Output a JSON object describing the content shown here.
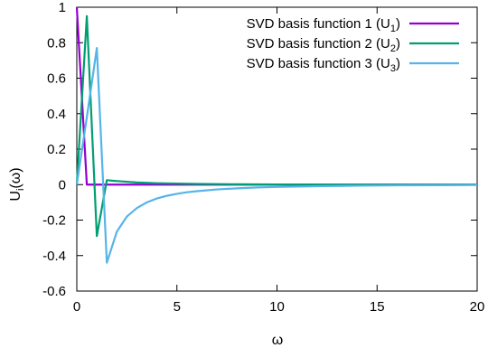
{
  "chart_data": {
    "type": "line",
    "title": "",
    "xlabel": "ω",
    "ylabel": {
      "base": "U",
      "sub": "i",
      "rest": "(ω)"
    },
    "xlim": [
      0,
      20
    ],
    "ylim": [
      -0.6,
      1
    ],
    "xticks": [
      0,
      5,
      10,
      15,
      20
    ],
    "yticks": [
      -0.6,
      -0.4,
      -0.2,
      0,
      0.2,
      0.4,
      0.6,
      0.8,
      1
    ],
    "xtick_labels": [
      "0",
      "5",
      "10",
      "15",
      "20"
    ],
    "ytick_labels": [
      "-0.6",
      "-0.4",
      "-0.2",
      "0",
      "0.2",
      "0.4",
      "0.6",
      "0.8",
      "1"
    ],
    "grid": false,
    "legend_position": "top-right",
    "series": [
      {
        "name": "SVD basis function 1 (U",
        "name_sub": "1",
        "name_end": ")",
        "color": "#9400d3",
        "x": [
          0,
          0.25,
          0.5,
          1.0,
          20
        ],
        "y": [
          1.0,
          0.5,
          0.0,
          0.0,
          0.0
        ]
      },
      {
        "name": "SVD basis function 2 (U",
        "name_sub": "2",
        "name_end": ")",
        "color": "#009e73",
        "x": [
          0,
          0.5,
          1.0,
          1.5,
          2.0,
          3.0,
          4.0,
          6.0,
          8.0,
          10.0,
          14.0,
          20.0
        ],
        "y": [
          0.0,
          0.95,
          -0.29,
          0.025,
          0.02,
          0.012,
          0.008,
          0.004,
          0.002,
          0.001,
          0.0,
          0.0
        ]
      },
      {
        "name": "SVD basis function 3 (U",
        "name_sub": "3",
        "name_end": ")",
        "color": "#56b4e9",
        "x": [
          0,
          0.5,
          1.0,
          1.5,
          2.0,
          2.5,
          3.0,
          3.5,
          4.0,
          4.5,
          5.0,
          5.5,
          6.0,
          7.0,
          8.0,
          9.0,
          10.0,
          12.0,
          14.0,
          16.0,
          18.0,
          20.0
        ],
        "y": [
          0.0,
          0.38,
          0.77,
          -0.44,
          -0.265,
          -0.18,
          -0.132,
          -0.1,
          -0.078,
          -0.063,
          -0.052,
          -0.043,
          -0.037,
          -0.027,
          -0.021,
          -0.016,
          -0.013,
          -0.009,
          -0.006,
          -0.004,
          -0.003,
          -0.002
        ]
      }
    ]
  }
}
